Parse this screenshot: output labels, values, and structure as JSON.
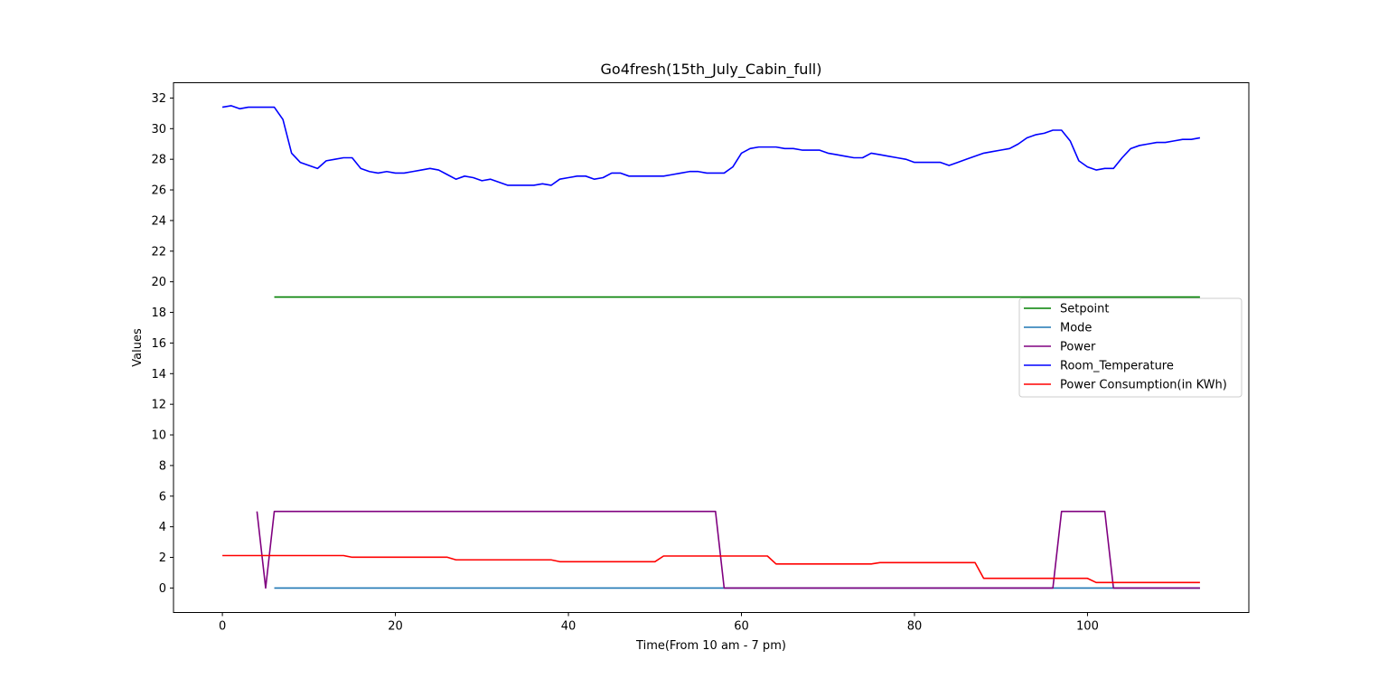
{
  "chart_data": {
    "type": "line",
    "title": "Go4fresh(15th_July_Cabin_full)",
    "xlabel": "Time(From 10 am - 7 pm)",
    "ylabel": "Values",
    "xlim": [
      -5.65,
      118.65
    ],
    "ylim": [
      -1.6,
      33.0
    ],
    "xticks": [
      0,
      20,
      40,
      60,
      80,
      100
    ],
    "yticks": [
      0,
      2,
      4,
      6,
      8,
      10,
      12,
      14,
      16,
      18,
      20,
      22,
      24,
      26,
      28,
      30,
      32
    ],
    "grid": false,
    "legend_position": "center-right",
    "series": [
      {
        "name": "Setpoint",
        "color": "#008000",
        "points": [
          [
            6,
            19
          ],
          [
            113,
            19
          ]
        ]
      },
      {
        "name": "Mode",
        "color": "#1f77b4",
        "points": [
          [
            6,
            0
          ],
          [
            113,
            0
          ]
        ]
      },
      {
        "name": "Power",
        "color": "#800080",
        "points": [
          [
            4,
            5
          ],
          [
            5,
            0
          ],
          [
            6,
            5
          ],
          [
            57,
            5
          ],
          [
            58,
            0
          ],
          [
            96,
            0
          ],
          [
            97,
            5
          ],
          [
            102,
            5
          ],
          [
            103,
            0
          ],
          [
            113,
            0
          ]
        ]
      },
      {
        "name": "Room_Temperature",
        "color": "#0000ff",
        "points": [
          [
            0,
            31.4
          ],
          [
            1,
            31.5
          ],
          [
            2,
            31.3
          ],
          [
            3,
            31.4
          ],
          [
            4,
            31.4
          ],
          [
            5,
            31.4
          ],
          [
            6,
            31.4
          ],
          [
            7,
            30.6
          ],
          [
            8,
            28.4
          ],
          [
            9,
            27.8
          ],
          [
            10,
            27.6
          ],
          [
            11,
            27.4
          ],
          [
            12,
            27.9
          ],
          [
            13,
            28.0
          ],
          [
            14,
            28.1
          ],
          [
            15,
            28.1
          ],
          [
            16,
            27.4
          ],
          [
            17,
            27.2
          ],
          [
            18,
            27.1
          ],
          [
            19,
            27.2
          ],
          [
            20,
            27.1
          ],
          [
            21,
            27.1
          ],
          [
            22,
            27.2
          ],
          [
            23,
            27.3
          ],
          [
            24,
            27.4
          ],
          [
            25,
            27.3
          ],
          [
            26,
            27.0
          ],
          [
            27,
            26.7
          ],
          [
            28,
            26.9
          ],
          [
            29,
            26.8
          ],
          [
            30,
            26.6
          ],
          [
            31,
            26.7
          ],
          [
            32,
            26.5
          ],
          [
            33,
            26.3
          ],
          [
            34,
            26.3
          ],
          [
            35,
            26.3
          ],
          [
            36,
            26.3
          ],
          [
            37,
            26.4
          ],
          [
            38,
            26.3
          ],
          [
            39,
            26.7
          ],
          [
            40,
            26.8
          ],
          [
            41,
            26.9
          ],
          [
            42,
            26.9
          ],
          [
            43,
            26.7
          ],
          [
            44,
            26.8
          ],
          [
            45,
            27.1
          ],
          [
            46,
            27.1
          ],
          [
            47,
            26.9
          ],
          [
            48,
            26.9
          ],
          [
            49,
            26.9
          ],
          [
            50,
            26.9
          ],
          [
            51,
            26.9
          ],
          [
            52,
            27.0
          ],
          [
            53,
            27.1
          ],
          [
            54,
            27.2
          ],
          [
            55,
            27.2
          ],
          [
            56,
            27.1
          ],
          [
            57,
            27.1
          ],
          [
            58,
            27.1
          ],
          [
            59,
            27.5
          ],
          [
            60,
            28.4
          ],
          [
            61,
            28.7
          ],
          [
            62,
            28.8
          ],
          [
            63,
            28.8
          ],
          [
            64,
            28.8
          ],
          [
            65,
            28.7
          ],
          [
            66,
            28.7
          ],
          [
            67,
            28.6
          ],
          [
            68,
            28.6
          ],
          [
            69,
            28.6
          ],
          [
            70,
            28.4
          ],
          [
            71,
            28.3
          ],
          [
            72,
            28.2
          ],
          [
            73,
            28.1
          ],
          [
            74,
            28.1
          ],
          [
            75,
            28.4
          ],
          [
            76,
            28.3
          ],
          [
            77,
            28.2
          ],
          [
            78,
            28.1
          ],
          [
            79,
            28.0
          ],
          [
            80,
            27.8
          ],
          [
            81,
            27.8
          ],
          [
            82,
            27.8
          ],
          [
            83,
            27.8
          ],
          [
            84,
            27.6
          ],
          [
            85,
            27.8
          ],
          [
            86,
            28.0
          ],
          [
            87,
            28.2
          ],
          [
            88,
            28.4
          ],
          [
            89,
            28.5
          ],
          [
            90,
            28.6
          ],
          [
            91,
            28.7
          ],
          [
            92,
            29.0
          ],
          [
            93,
            29.4
          ],
          [
            94,
            29.6
          ],
          [
            95,
            29.7
          ],
          [
            96,
            29.9
          ],
          [
            97,
            29.9
          ],
          [
            98,
            29.2
          ],
          [
            99,
            27.9
          ],
          [
            100,
            27.5
          ],
          [
            101,
            27.3
          ],
          [
            102,
            27.4
          ],
          [
            103,
            27.4
          ],
          [
            104,
            28.1
          ],
          [
            105,
            28.7
          ],
          [
            106,
            28.9
          ],
          [
            107,
            29.0
          ],
          [
            108,
            29.1
          ],
          [
            109,
            29.1
          ],
          [
            110,
            29.2
          ],
          [
            111,
            29.3
          ],
          [
            112,
            29.3
          ],
          [
            113,
            29.4
          ]
        ]
      },
      {
        "name": "Power Consumption(in KWh)",
        "color": "#ff0000",
        "points": [
          [
            0,
            2.12
          ],
          [
            14,
            2.12
          ],
          [
            15,
            2.01
          ],
          [
            26,
            2.01
          ],
          [
            27,
            1.84
          ],
          [
            38,
            1.84
          ],
          [
            39,
            1.72
          ],
          [
            50,
            1.72
          ],
          [
            51,
            2.09
          ],
          [
            63,
            2.09
          ],
          [
            64,
            1.57
          ],
          [
            75,
            1.57
          ],
          [
            76,
            1.66
          ],
          [
            87,
            1.66
          ],
          [
            88,
            0.63
          ],
          [
            100,
            0.63
          ],
          [
            101,
            0.36
          ],
          [
            113,
            0.36
          ]
        ]
      }
    ]
  }
}
